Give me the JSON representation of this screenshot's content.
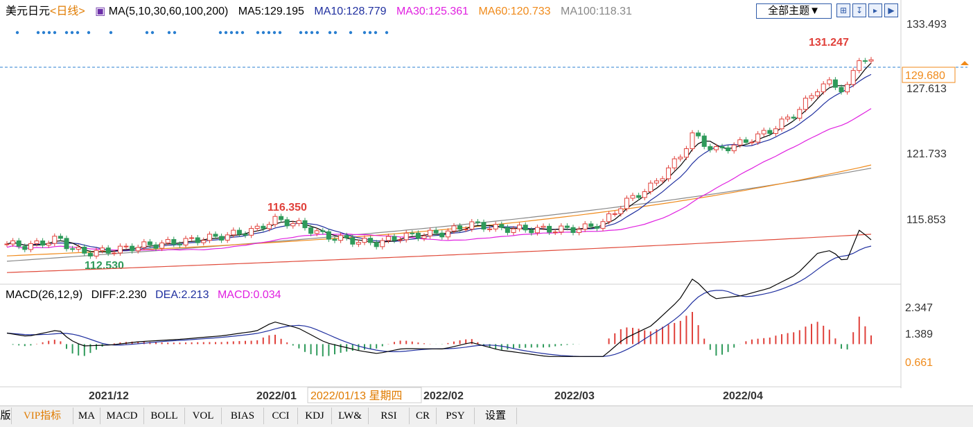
{
  "header": {
    "symbol": "美元日元",
    "period": "<日线>",
    "ma_params": "MA(5,10,30,60,100,200)",
    "ma5": "MA5:129.195",
    "ma10": "MA10:128.779",
    "ma30": "MA30:125.361",
    "ma60": "MA60:120.733",
    "ma100": "MA100:118.31",
    "theme_button": "全部主题▼"
  },
  "price_axis": {
    "ticks": [
      "133.493",
      "127.613",
      "121.733",
      "115.853"
    ],
    "current_price": "129.680"
  },
  "annotations": {
    "high": "131.247",
    "mid_high": "116.350",
    "low": "112.530"
  },
  "macd": {
    "params": "MACD(26,12,9)",
    "diff": "DIFF:2.230",
    "dea": "DEA:2.213",
    "macd": "MACD:0.034",
    "ticks": [
      "2.347",
      "1.389",
      "0.661"
    ]
  },
  "x_axis": {
    "labels": [
      "2021/12",
      "2022/01",
      "2022/02",
      "2022/03",
      "2022/04"
    ],
    "cursor_label": "2022/01/13 星期四"
  },
  "tabs": [
    "版",
    "VIP指标",
    "MA",
    "MACD",
    "BOLL",
    "VOL",
    "BIAS",
    "CCI",
    "KDJ",
    "LW&",
    "RSI",
    "CR",
    "PSY",
    "设置"
  ],
  "colors": {
    "up": "#e0403a",
    "down": "#2e9a5a",
    "ma5": "#000000",
    "ma10": "#1f2f9f",
    "ma30": "#e020e0",
    "ma60": "#f08a1a",
    "ma100": "#888888",
    "ma200": "#e04a3a",
    "accent": "#e07b00"
  }
}
